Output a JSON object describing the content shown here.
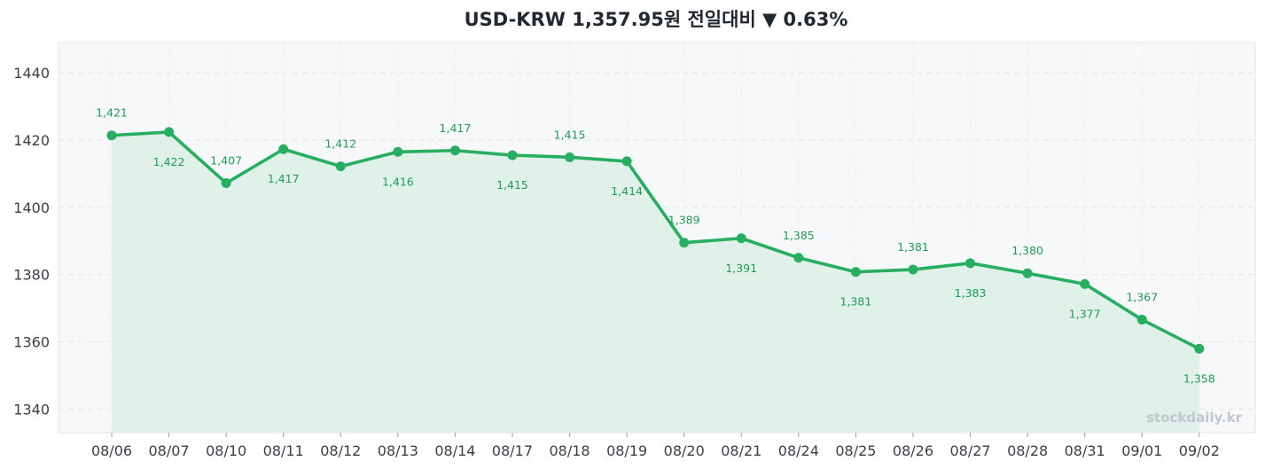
{
  "header": {
    "title": "USD-KRW  1,357.95원  전일대비 ▼ 0.63%"
  },
  "watermark": "stockdaily.kr",
  "colors": {
    "line": "#27ae60",
    "area": "#dcefe5",
    "plot_bg": "#f7f8fa",
    "label": "#1f9d55"
  },
  "chart_data": {
    "type": "area",
    "title": "USD-KRW  1,357.95원  전일대비 ▼ 0.63%",
    "xlabel": "",
    "ylabel": "",
    "categories": [
      "08/06",
      "08/07",
      "08/10",
      "08/11",
      "08/12",
      "08/13",
      "08/14",
      "08/17",
      "08/18",
      "08/19",
      "08/20",
      "08/21",
      "08/24",
      "08/25",
      "08/26",
      "08/27",
      "08/28",
      "08/31",
      "09/01",
      "09/02"
    ],
    "series": [
      {
        "values": [
          1421.4,
          1422.4,
          1407.2,
          1417.3,
          1412.2,
          1416.5,
          1416.9,
          1415.5,
          1414.9,
          1413.7,
          1389.5,
          1390.8,
          1385.0,
          1380.8,
          1381.5,
          1383.4,
          1380.4,
          1377.2,
          1366.6,
          1357.95
        ],
        "labels": [
          "1,421",
          "1,422",
          "1,407",
          "1,417",
          "1,412",
          "1,416",
          "1,417",
          "1,415",
          "1,415",
          "1,414",
          "1,389",
          "1,391",
          "1,385",
          "1,381",
          "1,381",
          "1,383",
          "1,380",
          "1,377",
          "1,367",
          "1,358"
        ]
      }
    ],
    "yticks": [
      1340,
      1360,
      1380,
      1400,
      1420,
      1440
    ],
    "ylim": [
      1333,
      1449
    ],
    "grid": true,
    "legend": "none"
  }
}
